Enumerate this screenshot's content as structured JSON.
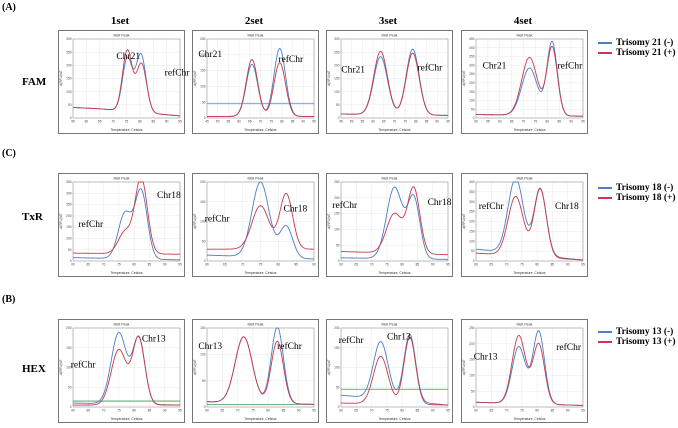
{
  "panel_labels": [
    "(A)",
    "(C)",
    "(B)"
  ],
  "column_headers": [
    "1set",
    "2set",
    "3set",
    "4set"
  ],
  "colors": {
    "negative": "#4a7fc1",
    "positive": "#c83a4a",
    "baseline_green": "#3a9a4a"
  },
  "legends": [
    [
      {
        "label": "Trisomy 21 (-)",
        "color": "#4a7fc1"
      },
      {
        "label": "Trisomy 21 (+)",
        "color": "#c83a4a"
      }
    ],
    [
      {
        "label": "Trisomy 18 (-)",
        "color": "#4a7fc1"
      },
      {
        "label": "Trisomy 18 (+)",
        "color": "#c83a4a"
      }
    ],
    [
      {
        "label": "Trisomy 13 (-)",
        "color": "#4a7fc1"
      },
      {
        "label": "Trisomy 13 (+)",
        "color": "#c83a4a"
      }
    ]
  ],
  "chart_data": [
    {
      "row": 0,
      "col": 0,
      "type": "line",
      "dye": "FAM",
      "title": "Melt Peak",
      "xlabel": "Temperature, Celsius",
      "ylabel": "-d(RFU)/dT",
      "xlim": [
        55,
        95
      ],
      "ylim": [
        0,
        300
      ],
      "xticks": [
        55,
        60,
        65,
        70,
        75,
        80,
        85,
        90,
        95
      ],
      "yticks": [
        0,
        50,
        100,
        150,
        200,
        250,
        300
      ],
      "labels": [
        "Chr21",
        "refChr"
      ],
      "series": [
        {
          "name": "Trisomy 21 (-)",
          "peaks": [
            [
              75.3,
              200,
              1.8
            ],
            [
              80.4,
              220,
              1.9
            ]
          ],
          "base": [
            [
              55,
              40
            ],
            [
              65,
              35
            ],
            [
              95,
              8
            ]
          ]
        },
        {
          "name": "Trisomy 21 (+)",
          "peaks": [
            [
              75.3,
              230,
              1.8
            ],
            [
              80.6,
              185,
              1.9
            ]
          ],
          "base": [
            [
              55,
              40
            ],
            [
              65,
              35
            ],
            [
              95,
              8
            ]
          ]
        }
      ]
    },
    {
      "row": 0,
      "col": 1,
      "type": "line",
      "dye": "FAM",
      "title": "Melt Peak",
      "xlabel": "Temperature, Celsius",
      "ylabel": "-d(RFU)/dT",
      "xlim": [
        45,
        95
      ],
      "ylim": [
        0,
        250
      ],
      "xticks": [
        45,
        50,
        55,
        60,
        65,
        70,
        75,
        80,
        85,
        90,
        95
      ],
      "yticks": [
        0,
        50,
        100,
        150,
        200,
        250
      ],
      "labels": [
        "Chr21",
        "refChr"
      ],
      "series": [
        {
          "name": "Trisomy 21 (-)",
          "peaks": [
            [
              66,
              165,
              2.7
            ],
            [
              79,
              215,
              2.7
            ]
          ],
          "base": [
            [
              45,
              5
            ],
            [
              95,
              5
            ]
          ]
        },
        {
          "name": "Trisomy 21 (+)",
          "peaks": [
            [
              66,
              180,
              2.7
            ],
            [
              79,
              170,
              2.7
            ]
          ],
          "base": [
            [
              45,
              5
            ],
            [
              95,
              5
            ]
          ]
        }
      ],
      "flat_line": {
        "y": 45,
        "color": "#4a7fc1"
      }
    },
    {
      "row": 0,
      "col": 2,
      "type": "line",
      "dye": "FAM",
      "title": "Melt Peak",
      "xlabel": "Temperature, Celsius",
      "ylabel": "-d(RFU)/dT",
      "xlim": [
        45,
        95
      ],
      "ylim": [
        0,
        300
      ],
      "xticks": [
        45,
        50,
        55,
        60,
        65,
        70,
        75,
        80,
        85,
        90,
        95
      ],
      "yticks": [
        0,
        50,
        100,
        150,
        200,
        250,
        300
      ],
      "labels": [
        "Chr21",
        "refChr"
      ],
      "series": [
        {
          "name": "Trisomy 21 (-)",
          "peaks": [
            [
              63.5,
              220,
              3.2
            ],
            [
              78.5,
              250,
              3.0
            ]
          ],
          "base": [
            [
              45,
              15
            ],
            [
              95,
              10
            ]
          ]
        },
        {
          "name": "Trisomy 21 (+)",
          "peaks": [
            [
              63.5,
              240,
              3.2
            ],
            [
              78.5,
              235,
              3.0
            ]
          ],
          "base": [
            [
              45,
              15
            ],
            [
              95,
              10
            ]
          ]
        }
      ]
    },
    {
      "row": 0,
      "col": 3,
      "type": "line",
      "dye": "FAM",
      "title": "Melt Peak",
      "xlabel": "Temperature, Celsius",
      "ylabel": "-d(RFU)/dT",
      "xlim": [
        50,
        95
      ],
      "ylim": [
        0,
        450
      ],
      "xticks": [
        50,
        55,
        60,
        65,
        70,
        75,
        80,
        85,
        90,
        95
      ],
      "yticks": [
        0,
        50,
        100,
        150,
        200,
        250,
        300,
        350,
        400,
        450
      ],
      "labels": [
        "Chr21",
        "refChr"
      ],
      "series": [
        {
          "name": "Trisomy 21 (-)",
          "peaks": [
            [
              72.5,
              270,
              3.3
            ],
            [
              82,
              420,
              2.2
            ]
          ],
          "base": [
            [
              50,
              20
            ],
            [
              95,
              10
            ]
          ]
        },
        {
          "name": "Trisomy 21 (+)",
          "peaks": [
            [
              72.5,
              330,
              3.3
            ],
            [
              82,
              390,
              2.2
            ]
          ],
          "base": [
            [
              50,
              20
            ],
            [
              95,
              10
            ]
          ]
        }
      ]
    },
    {
      "row": 1,
      "col": 0,
      "type": "line",
      "dye": "TxR",
      "title": "Melt Peak",
      "xlabel": "Temperature, Celsius",
      "ylabel": "-d(RFU)/dT",
      "xlim": [
        60,
        95
      ],
      "ylim": [
        0,
        350
      ],
      "xticks": [
        60,
        65,
        70,
        75,
        80,
        85,
        90,
        95
      ],
      "yticks": [
        0,
        50,
        100,
        150,
        200,
        250,
        300,
        350
      ],
      "labels": [
        "refChr",
        "Chr18"
      ],
      "series": [
        {
          "name": "Trisomy 18 (-)",
          "peaks": [
            [
              77,
              200,
              2.2
            ],
            [
              82.3,
              300,
              2.0
            ]
          ],
          "base": [
            [
              60,
              15
            ],
            [
              95,
              5
            ]
          ]
        },
        {
          "name": "Trisomy 18 (+)",
          "peaks": [
            [
              77,
              95,
              2.2
            ],
            [
              82.3,
              335,
              2.0
            ]
          ],
          "base": [
            [
              60,
              35
            ],
            [
              95,
              30
            ]
          ]
        }
      ]
    },
    {
      "row": 1,
      "col": 1,
      "type": "line",
      "dye": "TxR",
      "title": "Melt Peak",
      "xlabel": "Temperature, Celsius",
      "ylabel": "-d(RFU)/dT",
      "xlim": [
        60,
        90
      ],
      "ylim": [
        0,
        200
      ],
      "xticks": [
        60,
        65,
        70,
        75,
        80,
        85,
        90
      ],
      "yticks": [
        0,
        50,
        100,
        150,
        200
      ],
      "labels": [
        "refChr",
        "Chr18"
      ],
      "series": [
        {
          "name": "Trisomy 18 (-)",
          "peaks": [
            [
              75,
              190,
              2.4
            ],
            [
              82.2,
              80,
              1.8
            ]
          ],
          "base": [
            [
              60,
              15
            ],
            [
              90,
              5
            ]
          ]
        },
        {
          "name": "Trisomy 18 (+)",
          "peaks": [
            [
              75,
              110,
              2.4
            ],
            [
              82.2,
              140,
              1.8
            ]
          ],
          "base": [
            [
              60,
              30
            ],
            [
              90,
              30
            ]
          ]
        }
      ]
    },
    {
      "row": 1,
      "col": 2,
      "type": "line",
      "dye": "TxR",
      "title": "Melt Peak",
      "xlabel": "Temperature, Celsius",
      "ylabel": "-d(RFU)/dT",
      "xlim": [
        60,
        95
      ],
      "ylim": [
        0,
        250
      ],
      "xticks": [
        60,
        65,
        70,
        75,
        80,
        85,
        90,
        95
      ],
      "yticks": [
        0,
        50,
        100,
        150,
        200,
        250
      ],
      "labels": [
        "refChr",
        "Chr18"
      ],
      "series": [
        {
          "name": "Trisomy 18 (-)",
          "peaks": [
            [
              77.5,
              225,
              2.6
            ],
            [
              83.8,
              190,
              2.0
            ]
          ],
          "base": [
            [
              60,
              10
            ],
            [
              95,
              5
            ]
          ]
        },
        {
          "name": "Trisomy 18 (+)",
          "peaks": [
            [
              77.5,
              125,
              2.6
            ],
            [
              83.8,
              205,
              2.0
            ]
          ],
          "base": [
            [
              60,
              30
            ],
            [
              95,
              20
            ]
          ]
        }
      ]
    },
    {
      "row": 1,
      "col": 3,
      "type": "line",
      "dye": "TxR",
      "title": "Melt Peak",
      "xlabel": "Temperature, Celsius",
      "ylabel": "-d(RFU)/dT",
      "xlim": [
        60,
        95
      ],
      "ylim": [
        0,
        400
      ],
      "xticks": [
        60,
        65,
        70,
        75,
        80,
        85,
        90,
        95
      ],
      "yticks": [
        0,
        50,
        100,
        150,
        200,
        250,
        300,
        350,
        400
      ],
      "labels": [
        "refChr",
        "Chr18"
      ],
      "series": [
        {
          "name": "Trisomy 18 (-)",
          "peaks": [
            [
              73,
              380,
              2.5
            ],
            [
              81,
              340,
              2.0
            ]
          ],
          "base": [
            [
              60,
              60
            ],
            [
              95,
              5
            ]
          ]
        },
        {
          "name": "Trisomy 18 (+)",
          "peaks": [
            [
              73,
              300,
              2.5
            ],
            [
              81,
              345,
              2.0
            ]
          ],
          "base": [
            [
              60,
              40
            ],
            [
              95,
              5
            ]
          ]
        }
      ]
    },
    {
      "row": 2,
      "col": 0,
      "type": "line",
      "dye": "HEX",
      "title": "Melt Peak",
      "xlabel": "Temperature, Celsius",
      "ylabel": "-d(RFU)/dT",
      "xlim": [
        60,
        95
      ],
      "ylim": [
        0,
        200
      ],
      "xticks": [
        60,
        65,
        70,
        75,
        80,
        85,
        90,
        95
      ],
      "yticks": [
        0,
        50,
        100,
        150,
        200
      ],
      "labels": [
        "refChr",
        "Chr13"
      ],
      "series": [
        {
          "name": "Trisomy 13 (-)",
          "peaks": [
            [
              75,
              180,
              2.5
            ],
            [
              81.5,
              165,
              2.0
            ]
          ],
          "base": [
            [
              60,
              10
            ],
            [
              95,
              5
            ]
          ]
        },
        {
          "name": "Trisomy 13 (+)",
          "peaks": [
            [
              75,
              140,
              2.5
            ],
            [
              81.5,
              170,
              2.0
            ]
          ],
          "base": [
            [
              60,
              5
            ],
            [
              95,
              5
            ]
          ]
        }
      ],
      "flat_line": {
        "y": 15,
        "color": "#3a9a4a"
      }
    },
    {
      "row": 2,
      "col": 1,
      "type": "line",
      "dye": "HEX",
      "title": "Melt Peak",
      "xlabel": "Temperature, Celsius",
      "ylabel": "-d(RFU)/dT",
      "xlim": [
        60,
        95
      ],
      "ylim": [
        0,
        150
      ],
      "xticks": [
        60,
        65,
        70,
        75,
        80,
        85,
        90,
        95
      ],
      "yticks": [
        0,
        50,
        100,
        150
      ],
      "labels": [
        "Chr13",
        "refChr"
      ],
      "series": [
        {
          "name": "Trisomy 13 (-)",
          "peaks": [
            [
              72,
              125,
              2.8
            ],
            [
              83,
              145,
              2.0
            ]
          ],
          "base": [
            [
              60,
              10
            ],
            [
              95,
              5
            ]
          ]
        },
        {
          "name": "Trisomy 13 (+)",
          "peaks": [
            [
              72,
              125,
              2.8
            ],
            [
              83,
              118,
              2.0
            ]
          ],
          "base": [
            [
              60,
              10
            ],
            [
              95,
              5
            ]
          ]
        }
      ],
      "flat_line": {
        "y": 5,
        "color": "#3a9a4a"
      }
    },
    {
      "row": 2,
      "col": 2,
      "type": "line",
      "dye": "HEX",
      "title": "Melt Peak",
      "xlabel": "Temperature, Celsius",
      "ylabel": "-d(RFU)/dT",
      "xlim": [
        60,
        95
      ],
      "ylim": [
        0,
        200
      ],
      "xticks": [
        60,
        65,
        70,
        75,
        80,
        85,
        90,
        95
      ],
      "yticks": [
        0,
        50,
        100,
        150,
        200
      ],
      "labels": [
        "refChr",
        "Chr13"
      ],
      "series": [
        {
          "name": "Trisomy 13 (-)",
          "peaks": [
            [
              73,
              145,
              2.4
            ],
            [
              82.5,
              170,
              1.9
            ]
          ],
          "base": [
            [
              60,
              30
            ],
            [
              95,
              5
            ]
          ]
        },
        {
          "name": "Trisomy 13 (+)",
          "peaks": [
            [
              73,
              120,
              2.4
            ],
            [
              82.5,
              170,
              1.9
            ]
          ],
          "base": [
            [
              60,
              10
            ],
            [
              95,
              5
            ]
          ]
        }
      ],
      "flat_line": {
        "y": 45,
        "color": "#3a9a4a"
      }
    },
    {
      "row": 2,
      "col": 3,
      "type": "line",
      "dye": "HEX",
      "title": "Melt Peak",
      "xlabel": "Temperature, Celsius",
      "ylabel": "-d(RFU)/dT",
      "xlim": [
        60,
        95
      ],
      "ylim": [
        0,
        250
      ],
      "xticks": [
        60,
        65,
        70,
        75,
        80,
        85,
        90,
        95
      ],
      "yticks": [
        0,
        50,
        100,
        150,
        200,
        250
      ],
      "labels": [
        "Chr13",
        "refChr"
      ],
      "series": [
        {
          "name": "Trisomy 13 (-)",
          "peaks": [
            [
              74,
              180,
              2.2
            ],
            [
              80.5,
              230,
              1.9
            ]
          ],
          "base": [
            [
              60,
              15
            ],
            [
              95,
              5
            ]
          ]
        },
        {
          "name": "Trisomy 13 (+)",
          "peaks": [
            [
              74,
              215,
              2.2
            ],
            [
              80.5,
              190,
              1.9
            ]
          ],
          "base": [
            [
              60,
              15
            ],
            [
              95,
              5
            ]
          ]
        }
      ]
    }
  ],
  "row_labels": [
    "FAM",
    "TxR",
    "HEX"
  ]
}
